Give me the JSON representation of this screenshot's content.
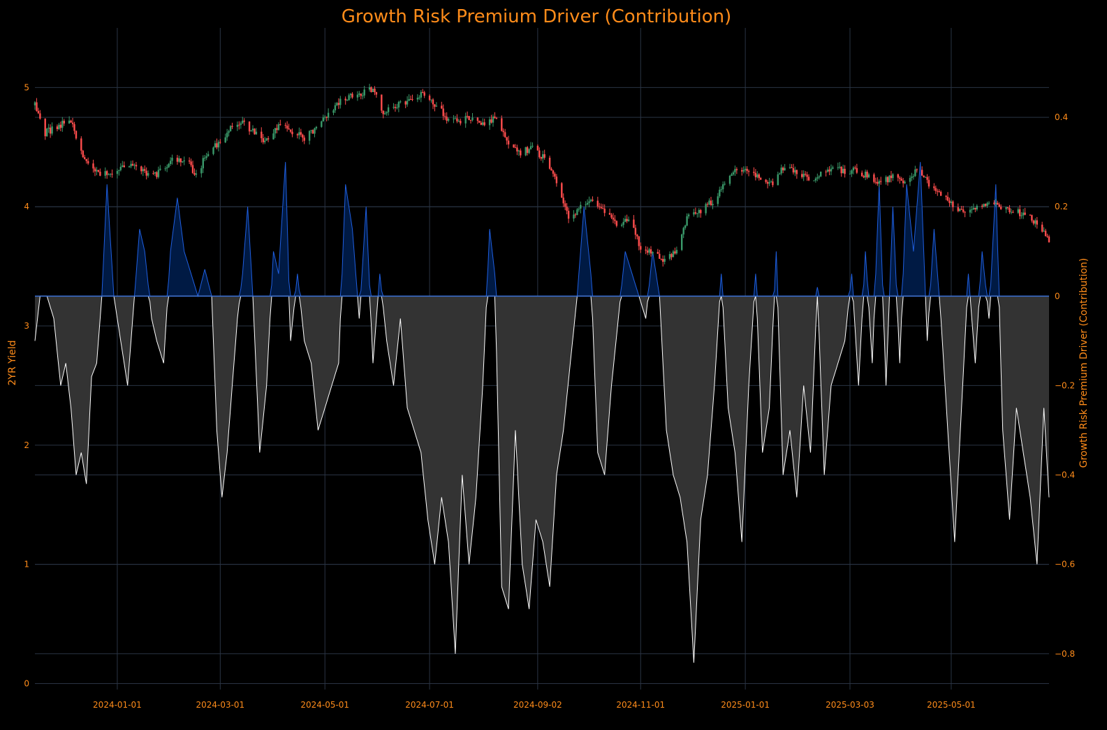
{
  "chart_data": {
    "type": "candlestick+area",
    "title": "Growth Risk Premium Driver (Contribution)",
    "ylabel_left": "2YR Yield",
    "ylabel_right": "Growth Risk Premium Driver (Contribution)",
    "x_range": [
      "2023-11-14",
      "2025-06-27"
    ],
    "ylim_left": [
      -0.05,
      5.5
    ],
    "ylim_right": [
      -0.88,
      0.6
    ],
    "x_ticks": [
      "2024-01-01",
      "2024-03-01",
      "2024-05-01",
      "2024-07-01",
      "2024-09-02",
      "2024-11-01",
      "2025-01-01",
      "2025-03-03",
      "2025-05-01"
    ],
    "y_ticks_left": [
      0,
      1,
      2,
      3,
      4,
      5
    ],
    "y_ticks_right": [
      -0.8,
      -0.6,
      -0.4,
      -0.2,
      0,
      0.2,
      0.4
    ],
    "y_tick_labels_right": [
      "−0.8",
      "−0.6",
      "−0.4",
      "−0.2",
      "0",
      "0.2",
      "0.4"
    ],
    "grid": true,
    "colors": {
      "up": "#3a9a6a",
      "down": "#ff4d4d",
      "positive_line": "#1f5fe0",
      "positive_fill": "#001a44",
      "negative_line": "#ffffff",
      "negative_fill": "#333333",
      "zero_line": "#3a6fd0",
      "text": "#ff8c1a"
    },
    "yield_anchors": [
      [
        "2023-11-14",
        4.85
      ],
      [
        "2023-11-20",
        4.62
      ],
      [
        "2023-11-28",
        4.68
      ],
      [
        "2023-12-05",
        4.72
      ],
      [
        "2023-12-12",
        4.4
      ],
      [
        "2023-12-20",
        4.3
      ],
      [
        "2023-12-29",
        4.25
      ],
      [
        "2024-01-05",
        4.35
      ],
      [
        "2024-01-12",
        4.32
      ],
      [
        "2024-01-22",
        4.25
      ],
      [
        "2024-02-02",
        4.4
      ],
      [
        "2024-02-12",
        4.35
      ],
      [
        "2024-02-16",
        4.25
      ],
      [
        "2024-02-22",
        4.45
      ],
      [
        "2024-03-01",
        4.55
      ],
      [
        "2024-03-08",
        4.68
      ],
      [
        "2024-03-15",
        4.7
      ],
      [
        "2024-03-22",
        4.6
      ],
      [
        "2024-03-29",
        4.55
      ],
      [
        "2024-04-05",
        4.7
      ],
      [
        "2024-04-12",
        4.62
      ],
      [
        "2024-04-19",
        4.58
      ],
      [
        "2024-04-25",
        4.65
      ],
      [
        "2024-05-01",
        4.75
      ],
      [
        "2024-05-10",
        4.9
      ],
      [
        "2024-05-20",
        4.95
      ],
      [
        "2024-05-29",
        4.98
      ],
      [
        "2024-06-04",
        4.8
      ],
      [
        "2024-06-11",
        4.85
      ],
      [
        "2024-06-20",
        4.9
      ],
      [
        "2024-06-28",
        4.95
      ],
      [
        "2024-07-05",
        4.85
      ],
      [
        "2024-07-12",
        4.72
      ],
      [
        "2024-07-19",
        4.72
      ],
      [
        "2024-07-26",
        4.75
      ],
      [
        "2024-08-02",
        4.7
      ],
      [
        "2024-08-09",
        4.75
      ],
      [
        "2024-08-16",
        4.55
      ],
      [
        "2024-08-23",
        4.45
      ],
      [
        "2024-08-30",
        4.5
      ],
      [
        "2024-09-06",
        4.4
      ],
      [
        "2024-09-13",
        4.2
      ],
      [
        "2024-09-20",
        3.9
      ],
      [
        "2024-09-27",
        4.0
      ],
      [
        "2024-10-04",
        4.05
      ],
      [
        "2024-10-11",
        3.95
      ],
      [
        "2024-10-18",
        3.85
      ],
      [
        "2024-10-25",
        3.9
      ],
      [
        "2024-11-01",
        3.65
      ],
      [
        "2024-11-08",
        3.6
      ],
      [
        "2024-11-15",
        3.55
      ],
      [
        "2024-11-22",
        3.65
      ],
      [
        "2024-11-29",
        3.95
      ],
      [
        "2024-12-06",
        3.97
      ],
      [
        "2024-12-13",
        4.05
      ],
      [
        "2024-12-20",
        4.2
      ],
      [
        "2024-12-27",
        4.3
      ],
      [
        "2025-01-03",
        4.3
      ],
      [
        "2025-01-10",
        4.25
      ],
      [
        "2025-01-17",
        4.2
      ],
      [
        "2025-01-24",
        4.35
      ],
      [
        "2025-01-31",
        4.3
      ],
      [
        "2025-02-07",
        4.22
      ],
      [
        "2025-02-14",
        4.28
      ],
      [
        "2025-02-21",
        4.32
      ],
      [
        "2025-02-28",
        4.3
      ],
      [
        "2025-03-07",
        4.3
      ],
      [
        "2025-03-14",
        4.25
      ],
      [
        "2025-03-21",
        4.2
      ],
      [
        "2025-03-28",
        4.25
      ],
      [
        "2025-04-04",
        4.22
      ],
      [
        "2025-04-11",
        4.3
      ],
      [
        "2025-04-18",
        4.2
      ],
      [
        "2025-04-25",
        4.1
      ],
      [
        "2025-05-02",
        4.0
      ],
      [
        "2025-05-09",
        3.95
      ],
      [
        "2025-05-16",
        3.98
      ],
      [
        "2025-05-23",
        4.02
      ],
      [
        "2025-05-30",
        4.0
      ],
      [
        "2025-06-06",
        3.95
      ],
      [
        "2025-06-13",
        3.95
      ],
      [
        "2025-06-20",
        3.85
      ],
      [
        "2025-06-27",
        3.72
      ]
    ],
    "driver_anchors": [
      [
        "2023-11-14",
        -0.1
      ],
      [
        "2023-11-17",
        0.0
      ],
      [
        "2023-11-21",
        0.0
      ],
      [
        "2023-11-25",
        -0.05
      ],
      [
        "2023-11-29",
        -0.2
      ],
      [
        "2023-12-02",
        -0.15
      ],
      [
        "2023-12-05",
        -0.25
      ],
      [
        "2023-12-08",
        -0.4
      ],
      [
        "2023-12-11",
        -0.35
      ],
      [
        "2023-12-14",
        -0.42
      ],
      [
        "2023-12-17",
        -0.18
      ],
      [
        "2023-12-20",
        -0.15
      ],
      [
        "2023-12-23",
        0.0
      ],
      [
        "2023-12-26",
        0.25
      ],
      [
        "2023-12-30",
        0.0
      ],
      [
        "2024-01-03",
        -0.1
      ],
      [
        "2024-01-07",
        -0.2
      ],
      [
        "2024-01-11",
        0.0
      ],
      [
        "2024-01-14",
        0.15
      ],
      [
        "2024-01-17",
        0.1
      ],
      [
        "2024-01-21",
        -0.05
      ],
      [
        "2024-01-24",
        -0.1
      ],
      [
        "2024-01-28",
        -0.15
      ],
      [
        "2024-02-01",
        0.1
      ],
      [
        "2024-02-05",
        0.22
      ],
      [
        "2024-02-09",
        0.1
      ],
      [
        "2024-02-13",
        0.05
      ],
      [
        "2024-02-17",
        0.0
      ],
      [
        "2024-02-21",
        0.06
      ],
      [
        "2024-02-25",
        0.0
      ],
      [
        "2024-02-28",
        -0.3
      ],
      [
        "2024-03-02",
        -0.45
      ],
      [
        "2024-03-05",
        -0.35
      ],
      [
        "2024-03-08",
        -0.2
      ],
      [
        "2024-03-11",
        -0.05
      ],
      [
        "2024-03-14",
        0.05
      ],
      [
        "2024-03-17",
        0.2
      ],
      [
        "2024-03-20",
        0.0
      ],
      [
        "2024-03-24",
        -0.35
      ],
      [
        "2024-03-28",
        -0.2
      ],
      [
        "2024-04-01",
        0.1
      ],
      [
        "2024-04-04",
        0.05
      ],
      [
        "2024-04-08",
        0.3
      ],
      [
        "2024-04-11",
        -0.1
      ],
      [
        "2024-04-15",
        0.05
      ],
      [
        "2024-04-19",
        -0.1
      ],
      [
        "2024-04-23",
        -0.15
      ],
      [
        "2024-04-27",
        -0.3
      ],
      [
        "2024-05-01",
        -0.25
      ],
      [
        "2024-05-05",
        -0.2
      ],
      [
        "2024-05-09",
        -0.15
      ],
      [
        "2024-05-13",
        0.25
      ],
      [
        "2024-05-17",
        0.15
      ],
      [
        "2024-05-21",
        -0.05
      ],
      [
        "2024-05-25",
        0.2
      ],
      [
        "2024-05-29",
        -0.15
      ],
      [
        "2024-06-02",
        0.05
      ],
      [
        "2024-06-06",
        -0.1
      ],
      [
        "2024-06-10",
        -0.2
      ],
      [
        "2024-06-14",
        -0.05
      ],
      [
        "2024-06-18",
        -0.25
      ],
      [
        "2024-06-22",
        -0.3
      ],
      [
        "2024-06-26",
        -0.35
      ],
      [
        "2024-06-30",
        -0.5
      ],
      [
        "2024-07-04",
        -0.6
      ],
      [
        "2024-07-08",
        -0.45
      ],
      [
        "2024-07-12",
        -0.55
      ],
      [
        "2024-07-16",
        -0.8
      ],
      [
        "2024-07-20",
        -0.4
      ],
      [
        "2024-07-24",
        -0.6
      ],
      [
        "2024-07-28",
        -0.45
      ],
      [
        "2024-08-01",
        -0.2
      ],
      [
        "2024-08-05",
        0.15
      ],
      [
        "2024-08-08",
        0.05
      ],
      [
        "2024-08-12",
        -0.65
      ],
      [
        "2024-08-16",
        -0.7
      ],
      [
        "2024-08-20",
        -0.3
      ],
      [
        "2024-08-24",
        -0.6
      ],
      [
        "2024-08-28",
        -0.7
      ],
      [
        "2024-09-01",
        -0.5
      ],
      [
        "2024-09-05",
        -0.55
      ],
      [
        "2024-09-09",
        -0.65
      ],
      [
        "2024-09-13",
        -0.4
      ],
      [
        "2024-09-17",
        -0.3
      ],
      [
        "2024-09-21",
        -0.15
      ],
      [
        "2024-09-25",
        0.0
      ],
      [
        "2024-09-29",
        0.2
      ],
      [
        "2024-10-03",
        0.05
      ],
      [
        "2024-10-07",
        -0.35
      ],
      [
        "2024-10-11",
        -0.4
      ],
      [
        "2024-10-15",
        -0.2
      ],
      [
        "2024-10-19",
        -0.05
      ],
      [
        "2024-10-23",
        0.1
      ],
      [
        "2024-10-27",
        0.05
      ],
      [
        "2024-10-31",
        0.0
      ],
      [
        "2024-11-04",
        -0.05
      ],
      [
        "2024-11-08",
        0.1
      ],
      [
        "2024-11-12",
        0.0
      ],
      [
        "2024-11-16",
        -0.3
      ],
      [
        "2024-11-20",
        -0.4
      ],
      [
        "2024-11-24",
        -0.45
      ],
      [
        "2024-11-28",
        -0.55
      ],
      [
        "2024-12-02",
        -0.82
      ],
      [
        "2024-12-06",
        -0.5
      ],
      [
        "2024-12-10",
        -0.4
      ],
      [
        "2024-12-14",
        -0.2
      ],
      [
        "2024-12-18",
        0.05
      ],
      [
        "2024-12-22",
        -0.25
      ],
      [
        "2024-12-26",
        -0.35
      ],
      [
        "2024-12-30",
        -0.55
      ],
      [
        "2025-01-03",
        -0.2
      ],
      [
        "2025-01-07",
        0.05
      ],
      [
        "2025-01-11",
        -0.35
      ],
      [
        "2025-01-15",
        -0.25
      ],
      [
        "2025-01-19",
        0.1
      ],
      [
        "2025-01-23",
        -0.4
      ],
      [
        "2025-01-27",
        -0.3
      ],
      [
        "2025-01-31",
        -0.45
      ],
      [
        "2025-02-04",
        -0.2
      ],
      [
        "2025-02-08",
        -0.35
      ],
      [
        "2025-02-12",
        0.02
      ],
      [
        "2025-02-16",
        -0.4
      ],
      [
        "2025-02-20",
        -0.2
      ],
      [
        "2025-02-24",
        -0.15
      ],
      [
        "2025-02-28",
        -0.1
      ],
      [
        "2025-03-04",
        0.05
      ],
      [
        "2025-03-08",
        -0.2
      ],
      [
        "2025-03-12",
        0.1
      ],
      [
        "2025-03-16",
        -0.15
      ],
      [
        "2025-03-20",
        0.25
      ],
      [
        "2025-03-24",
        -0.2
      ],
      [
        "2025-03-28",
        0.2
      ],
      [
        "2025-04-01",
        -0.15
      ],
      [
        "2025-04-05",
        0.25
      ],
      [
        "2025-04-09",
        0.1
      ],
      [
        "2025-04-13",
        0.3
      ],
      [
        "2025-04-17",
        -0.1
      ],
      [
        "2025-04-21",
        0.15
      ],
      [
        "2025-04-25",
        -0.05
      ],
      [
        "2025-04-29",
        -0.3
      ],
      [
        "2025-05-03",
        -0.55
      ],
      [
        "2025-05-07",
        -0.25
      ],
      [
        "2025-05-11",
        0.05
      ],
      [
        "2025-05-15",
        -0.15
      ],
      [
        "2025-05-19",
        0.1
      ],
      [
        "2025-05-23",
        -0.05
      ],
      [
        "2025-05-27",
        0.25
      ],
      [
        "2025-05-31",
        -0.3
      ],
      [
        "2025-06-04",
        -0.5
      ],
      [
        "2025-06-08",
        -0.25
      ],
      [
        "2025-06-12",
        -0.35
      ],
      [
        "2025-06-16",
        -0.45
      ],
      [
        "2025-06-20",
        -0.6
      ],
      [
        "2025-06-24",
        -0.25
      ],
      [
        "2025-06-27",
        -0.45
      ]
    ]
  }
}
